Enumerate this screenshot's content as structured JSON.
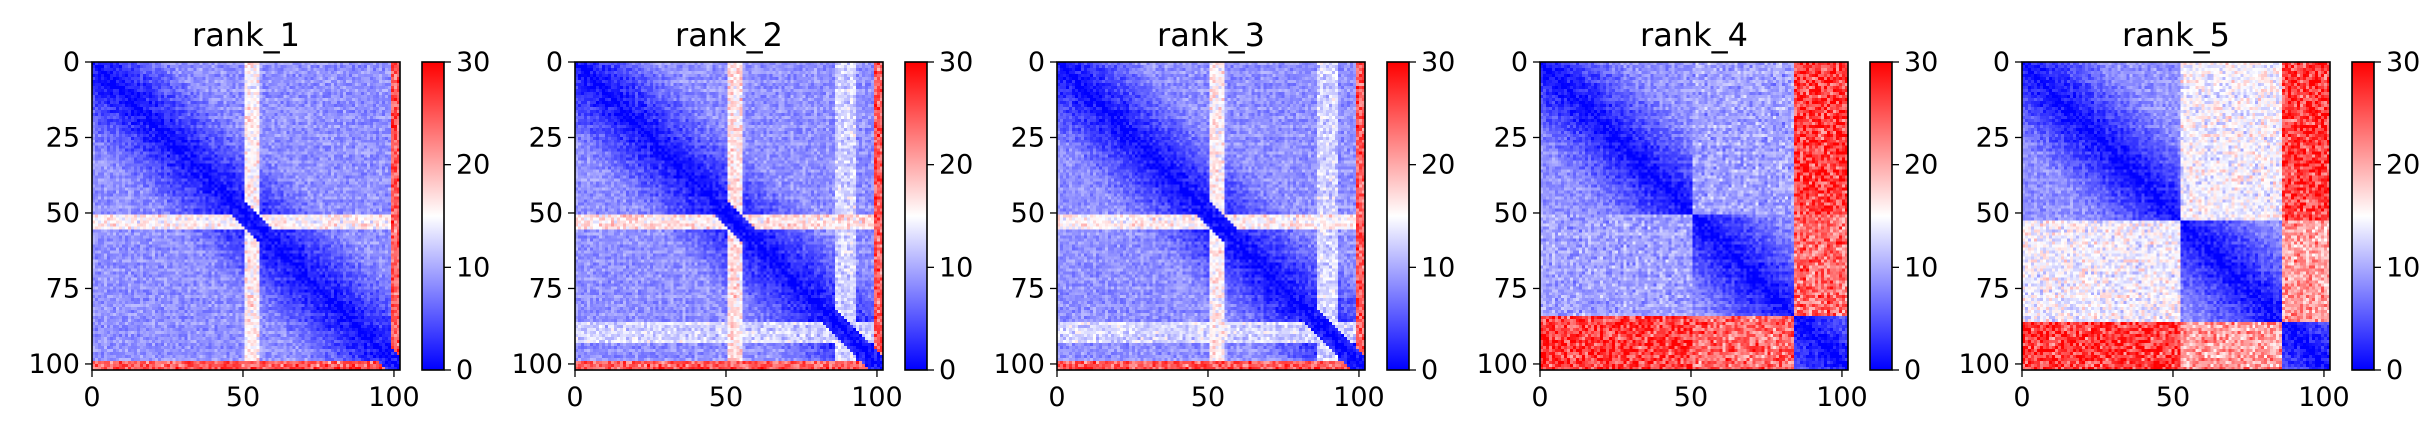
{
  "chart_data": [
    {
      "type": "heatmap",
      "title": "rank_1",
      "matrix_size": 103,
      "x_ticks": [
        0,
        50,
        100
      ],
      "y_ticks": [
        0,
        25,
        50,
        75,
        100
      ],
      "xlim": [
        0,
        102
      ],
      "ylim": [
        102,
        0
      ],
      "colorbar": {
        "min": 0,
        "max": 30,
        "ticks": [
          0,
          10,
          20,
          30
        ],
        "colormap": "bwr"
      },
      "bands": [
        {
          "index_range": [
            51,
            55
          ],
          "value": 15
        },
        {
          "index_range": [
            100,
            102
          ],
          "value": 24
        }
      ],
      "base_value": {
        "near_diagonal": 0,
        "far": 8
      }
    },
    {
      "type": "heatmap",
      "title": "rank_2",
      "matrix_size": 103,
      "x_ticks": [
        0,
        50,
        100
      ],
      "y_ticks": [
        0,
        25,
        50,
        75,
        100
      ],
      "xlim": [
        0,
        102
      ],
      "ylim": [
        102,
        0
      ],
      "colorbar": {
        "min": 0,
        "max": 30,
        "ticks": [
          0,
          10,
          20,
          30
        ],
        "colormap": "bwr"
      },
      "bands": [
        {
          "index_range": [
            51,
            55
          ],
          "value": 16
        },
        {
          "index_range": [
            87,
            93
          ],
          "value": 12
        },
        {
          "index_range": [
            100,
            102
          ],
          "value": 24
        }
      ],
      "base_value": {
        "near_diagonal": 0,
        "far": 8
      }
    },
    {
      "type": "heatmap",
      "title": "rank_3",
      "matrix_size": 103,
      "x_ticks": [
        0,
        50,
        100
      ],
      "y_ticks": [
        0,
        25,
        50,
        75,
        100
      ],
      "xlim": [
        0,
        102
      ],
      "ylim": [
        102,
        0
      ],
      "colorbar": {
        "min": 0,
        "max": 30,
        "ticks": [
          0,
          10,
          20,
          30
        ],
        "colormap": "bwr"
      },
      "bands": [
        {
          "index_range": [
            51,
            55
          ],
          "value": 15
        },
        {
          "index_range": [
            87,
            93
          ],
          "value": 12
        },
        {
          "index_range": [
            100,
            102
          ],
          "value": 24
        }
      ],
      "base_value": {
        "near_diagonal": 0,
        "far": 8
      }
    },
    {
      "type": "heatmap",
      "title": "rank_4",
      "matrix_size": 103,
      "x_ticks": [
        0,
        50,
        100
      ],
      "y_ticks": [
        0,
        25,
        50,
        75,
        100
      ],
      "xlim": [
        0,
        102
      ],
      "ylim": [
        102,
        0
      ],
      "colorbar": {
        "min": 0,
        "max": 30,
        "ticks": [
          0,
          10,
          20,
          30
        ],
        "colormap": "bwr"
      },
      "domains": [
        {
          "range": [
            0,
            50
          ]
        },
        {
          "range": [
            51,
            84
          ]
        },
        {
          "range": [
            85,
            102
          ]
        }
      ],
      "inter_domain_values": [
        {
          "a": 0,
          "b": 1,
          "value": 9
        },
        {
          "a": 0,
          "b": 2,
          "value": 26
        },
        {
          "a": 1,
          "b": 2,
          "value": 23
        }
      ],
      "base_value": {
        "near_diagonal": 0,
        "far": 8
      }
    },
    {
      "type": "heatmap",
      "title": "rank_5",
      "matrix_size": 103,
      "x_ticks": [
        0,
        50,
        100
      ],
      "y_ticks": [
        0,
        25,
        50,
        75,
        100
      ],
      "xlim": [
        0,
        102
      ],
      "ylim": [
        102,
        0
      ],
      "colorbar": {
        "min": 0,
        "max": 30,
        "ticks": [
          0,
          10,
          20,
          30
        ],
        "colormap": "bwr"
      },
      "domains": [
        {
          "range": [
            0,
            52
          ]
        },
        {
          "range": [
            53,
            86
          ]
        },
        {
          "range": [
            87,
            102
          ]
        }
      ],
      "inter_domain_values": [
        {
          "a": 0,
          "b": 1,
          "value": 14
        },
        {
          "a": 0,
          "b": 2,
          "value": 26
        },
        {
          "a": 1,
          "b": 2,
          "value": 20
        }
      ],
      "base_value": {
        "near_diagonal": 0,
        "far": 8
      }
    }
  ]
}
